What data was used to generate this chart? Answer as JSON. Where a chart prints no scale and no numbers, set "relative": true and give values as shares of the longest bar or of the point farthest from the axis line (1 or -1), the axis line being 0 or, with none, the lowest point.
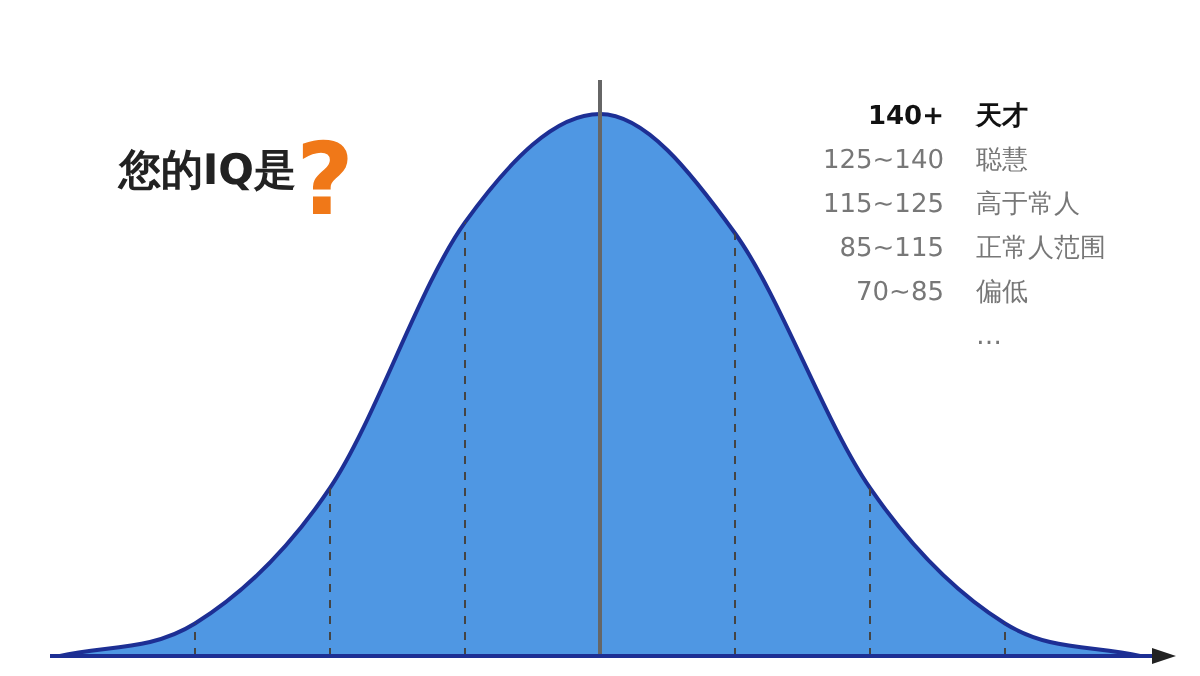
{
  "chart_data": {
    "type": "area",
    "relative": true,
    "title": "您的IQ是",
    "categories": [
      null,
      null,
      null,
      null,
      null,
      null,
      null,
      null,
      null
    ],
    "series": [
      {
        "color": "#4f97e3",
        "values": [
          0,
          0.06,
          0.31,
          0.8,
          1,
          0.78,
          0.31,
          0.06,
          0
        ]
      }
    ],
    "grid": "x",
    "annotations": [
      "?",
      "140+",
      "天才",
      "125~140",
      "聪慧",
      "115~125",
      "高于常人",
      "85~115",
      "正常人范围",
      "70~85",
      "偏低",
      "…"
    ]
  }
}
